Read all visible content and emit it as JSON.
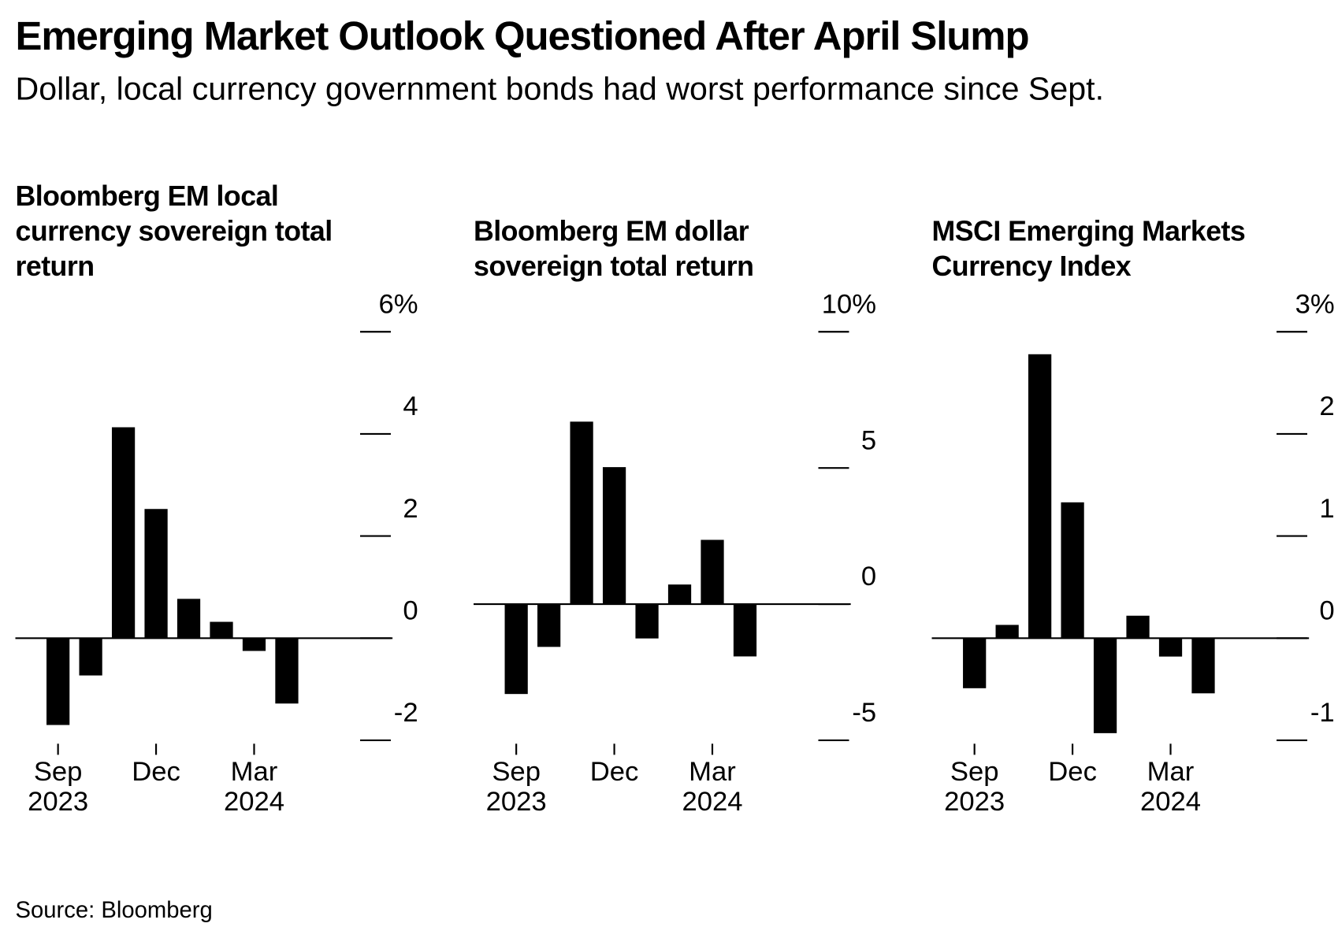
{
  "title": "Emerging Market Outlook Questioned After April Slump",
  "subtitle": "Dollar, local currency government bonds had worst performance since Sept.",
  "source": "Source: Bloomberg",
  "chart_data": [
    {
      "type": "bar",
      "title": "Bloomberg EM local currency sovereign total return",
      "categories": [
        "Sep 2023",
        null,
        null,
        "Dec",
        null,
        null,
        "Mar 2024",
        null
      ],
      "values": [
        -1.7,
        -0.73,
        4.13,
        2.53,
        0.77,
        0.32,
        -0.25,
        -1.28
      ],
      "color": "#000000",
      "ylim": [
        -2,
        6
      ],
      "yticks": [
        -2,
        0,
        2,
        4,
        {
          "value": 6,
          "label": "6%"
        }
      ]
    },
    {
      "type": "bar",
      "title": "Bloomberg EM dollar sovereign total return",
      "categories": [
        "Sep 2023",
        null,
        null,
        "Dec",
        null,
        null,
        "Mar 2024",
        null
      ],
      "values": [
        -3.3,
        -1.57,
        6.7,
        5.03,
        -1.26,
        0.72,
        2.36,
        -1.92
      ],
      "color": "#000000",
      "ylim": [
        -5,
        10
      ],
      "yticks": [
        -5,
        0,
        5,
        {
          "value": 10,
          "label": "10%"
        }
      ]
    },
    {
      "type": "bar",
      "title": "MSCI Emerging Markets Currency Index",
      "categories": [
        "Sep 2023",
        null,
        null,
        "Dec",
        null,
        null,
        "Mar 2024",
        null
      ],
      "values": [
        -0.49,
        0.13,
        2.78,
        1.33,
        -0.93,
        0.22,
        -0.18,
        -0.54
      ],
      "color": "#000000",
      "ylim": [
        -1,
        3
      ],
      "yticks": [
        -1,
        0,
        1,
        2,
        {
          "value": 3,
          "label": "3%"
        }
      ]
    }
  ]
}
